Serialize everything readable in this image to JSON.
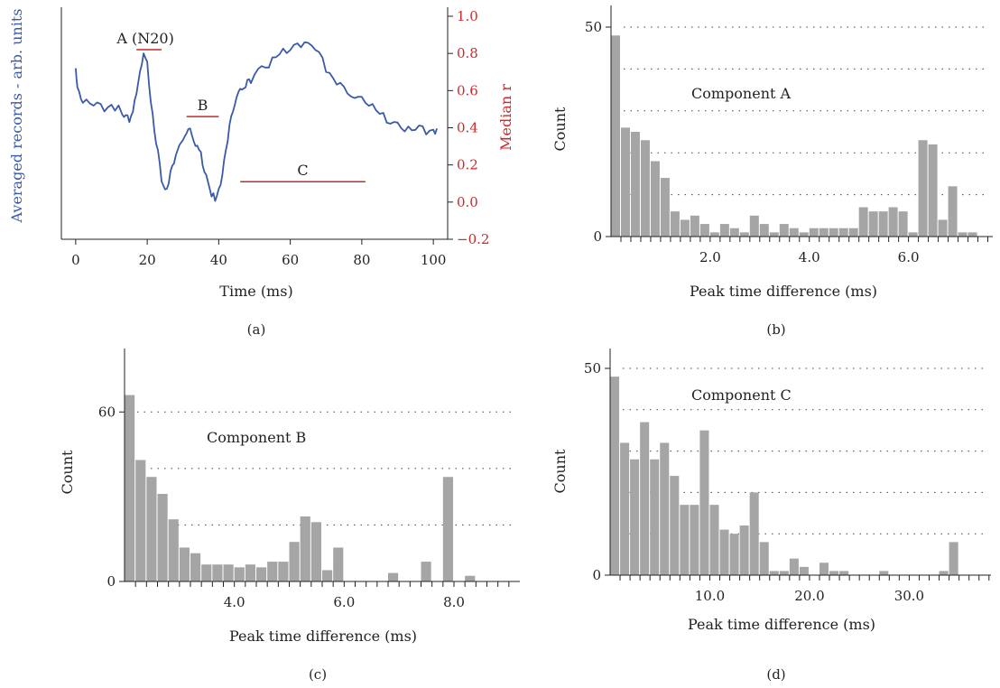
{
  "colors": {
    "trace": "#3a5aa8",
    "red": "#cc2a2a",
    "bar": "#a5a5a5",
    "axis": "#222222"
  },
  "chart_data": [
    {
      "id": "a",
      "type": "line",
      "panel_label": "(a)",
      "xlabel": "Time (ms)",
      "ylabel_left": "Averaged records - arb. units",
      "ylabel_right": "Median r",
      "xlim": [
        -4,
        104
      ],
      "xticks": [
        0,
        20,
        40,
        60,
        80,
        100
      ],
      "ylim_right": [
        -0.2,
        1.0
      ],
      "yticks_right": [
        "1.0",
        "0.8",
        "0.6",
        "0.4",
        "0.2",
        "0.0",
        "−0.2"
      ],
      "trace_left_axis_range": [
        -0.2,
        1.0
      ],
      "series": [
        {
          "x": [
            0,
            0.5,
            1,
            2,
            4,
            6,
            8,
            10,
            12,
            13,
            14,
            15,
            16,
            17,
            18,
            19,
            20,
            21,
            22,
            23,
            24,
            25,
            26,
            27,
            28,
            30,
            31,
            32,
            33,
            34,
            35,
            36,
            37,
            38,
            39,
            40,
            41,
            42,
            43,
            44,
            45,
            46,
            47,
            48,
            49,
            50,
            52,
            54,
            56,
            58,
            60,
            62,
            64,
            66,
            68,
            70,
            72,
            74,
            76,
            78,
            80,
            82,
            84,
            86,
            88,
            90,
            92,
            94,
            96,
            98,
            100,
            101
          ],
          "y": [
            0.74,
            0.62,
            0.58,
            0.55,
            0.53,
            0.52,
            0.5,
            0.52,
            0.5,
            0.48,
            0.46,
            0.45,
            0.49,
            0.57,
            0.72,
            0.8,
            0.74,
            0.55,
            0.38,
            0.26,
            0.12,
            0.06,
            0.12,
            0.2,
            0.24,
            0.35,
            0.37,
            0.38,
            0.34,
            0.3,
            0.25,
            0.17,
            0.1,
            0.05,
            0.01,
            0.06,
            0.16,
            0.28,
            0.4,
            0.5,
            0.56,
            0.59,
            0.62,
            0.65,
            0.66,
            0.69,
            0.72,
            0.74,
            0.78,
            0.81,
            0.83,
            0.85,
            0.84,
            0.85,
            0.8,
            0.72,
            0.67,
            0.63,
            0.6,
            0.56,
            0.55,
            0.53,
            0.49,
            0.46,
            0.43,
            0.42,
            0.4,
            0.39,
            0.4,
            0.38,
            0.39,
            0.38
          ]
        }
      ],
      "windows": [
        {
          "label": "A (N20)",
          "x0": 17,
          "x1": 24,
          "r": 0.82
        },
        {
          "label": "B",
          "x0": 31,
          "x1": 40,
          "r": 0.46
        },
        {
          "label": "C",
          "x0": 46,
          "x1": 81,
          "r": 0.11
        }
      ]
    },
    {
      "id": "b",
      "type": "bar",
      "panel_label": "(b)",
      "annotation": "Component A",
      "xlabel": "Peak time difference (ms)",
      "ylabel": "Count",
      "xlim": [
        0,
        7.7
      ],
      "xticks": [
        "2.0",
        "4.0",
        "6.0"
      ],
      "xtick_values": [
        2.0,
        4.0,
        6.0
      ],
      "ylim": [
        0,
        50
      ],
      "yticks": [
        0,
        50
      ],
      "gridlines_y": [
        10,
        20,
        30,
        40,
        50
      ],
      "bin_start": 0,
      "bin_width": 0.2,
      "values": [
        48,
        26,
        25,
        23,
        18,
        14,
        6,
        4,
        5,
        3,
        1,
        3,
        2,
        1,
        5,
        3,
        1,
        3,
        2,
        1,
        2,
        2,
        2,
        2,
        2,
        7,
        6,
        6,
        7,
        6,
        1,
        23,
        22,
        4,
        12,
        1,
        1
      ]
    },
    {
      "id": "c",
      "type": "bar",
      "panel_label": "(c)",
      "annotation": "Component B",
      "xlabel": "Peak time difference (ms)",
      "ylabel": "Count",
      "xlim": [
        2.0,
        9.2
      ],
      "xticks": [
        "4.0",
        "6.0",
        "8.0"
      ],
      "xtick_values": [
        4.0,
        6.0,
        8.0
      ],
      "ylim": [
        0,
        70
      ],
      "yticks": [
        0,
        60
      ],
      "gridlines_y": [
        20,
        40,
        60
      ],
      "bin_start": 2.0,
      "bin_width": 0.2,
      "values": [
        66,
        43,
        37,
        31,
        22,
        12,
        10,
        6,
        6,
        6,
        5,
        6,
        5,
        7,
        7,
        14,
        23,
        21,
        4,
        12,
        0,
        0,
        0,
        0,
        3,
        0,
        0,
        7,
        0,
        37,
        0,
        2
      ]
    },
    {
      "id": "d",
      "type": "bar",
      "panel_label": "(d)",
      "annotation": "Component C",
      "xlabel": "Peak time difference (ms)",
      "ylabel": "Count",
      "xlim": [
        0,
        38.2
      ],
      "xticks": [
        "10.0",
        "20.0",
        "30.0"
      ],
      "xtick_values": [
        10.0,
        20.0,
        30.0
      ],
      "ylim": [
        0,
        50
      ],
      "yticks": [
        0,
        50
      ],
      "gridlines_y": [
        10,
        20,
        30,
        40,
        50
      ],
      "bin_start": 0,
      "bin_width": 1.0,
      "values": [
        48,
        32,
        28,
        37,
        28,
        32,
        24,
        17,
        17,
        35,
        17,
        11,
        10,
        12,
        20,
        8,
        1,
        1,
        4,
        2,
        0,
        3,
        1,
        1,
        0,
        0,
        0,
        1,
        0,
        0,
        0,
        0,
        0,
        1,
        8
      ]
    }
  ]
}
